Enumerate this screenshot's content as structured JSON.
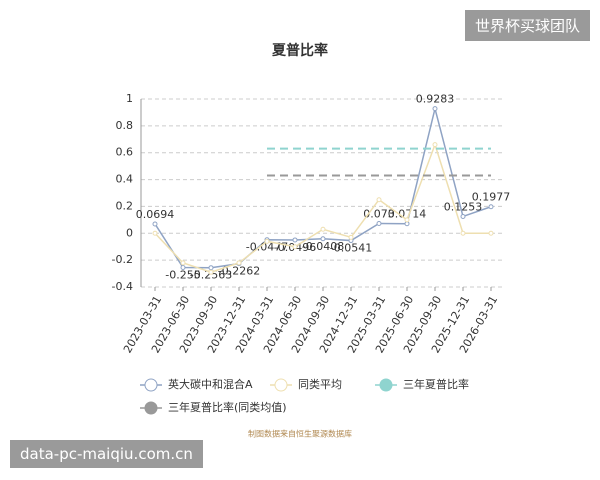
{
  "chart_data": {
    "type": "line",
    "title": "夏普比率",
    "categories": [
      "2023-03-31",
      "2023-06-30",
      "2023-09-30",
      "2023-12-31",
      "2024-03-31",
      "2024-06-30",
      "2024-09-30",
      "2024-12-31",
      "2025-03-31",
      "2025-06-30",
      "2025-09-30",
      "2025-12-31",
      "2026-03-31"
    ],
    "series": [
      {
        "name": "英大碳中和混合A",
        "color": "#8fa3c4",
        "values": [
          0.0694,
          -0.255,
          -0.2563,
          -0.2262,
          -0.0477,
          -0.0496,
          -0.0408,
          -0.0541,
          0.073,
          0.0714,
          0.9283,
          0.1253,
          0.1977
        ],
        "labels": true
      },
      {
        "name": "同类平均",
        "color": "#eedfb0",
        "values": [
          0,
          -0.22,
          -0.29,
          -0.22,
          -0.06,
          -0.1,
          0.03,
          -0.03,
          0.25,
          0.1,
          0.66,
          0,
          0
        ]
      },
      {
        "name": "三年夏普比率",
        "color": "#8fd4cf",
        "dashed": true,
        "values": [
          null,
          null,
          null,
          null,
          0.63,
          0.63,
          0.63,
          0.63,
          0.63,
          0.63,
          0.63,
          0.63,
          0.63
        ]
      },
      {
        "name": "三年夏普比率(同类均值)",
        "color": "#999999",
        "dashed": true,
        "values": [
          null,
          null,
          null,
          null,
          0.43,
          0.43,
          0.43,
          0.43,
          0.43,
          0.43,
          0.43,
          0.43,
          0.43
        ]
      }
    ],
    "ylim": [
      -0.4,
      1
    ],
    "yticks": [
      -0.4,
      -0.2,
      0,
      0.2,
      0.4,
      0.6,
      0.8,
      1
    ],
    "grid": true,
    "source": "制图数据来自恒生聚源数据库"
  },
  "watermarks": [
    "世界杯买球团队",
    "data-pc-maiqiu.com.cn"
  ]
}
